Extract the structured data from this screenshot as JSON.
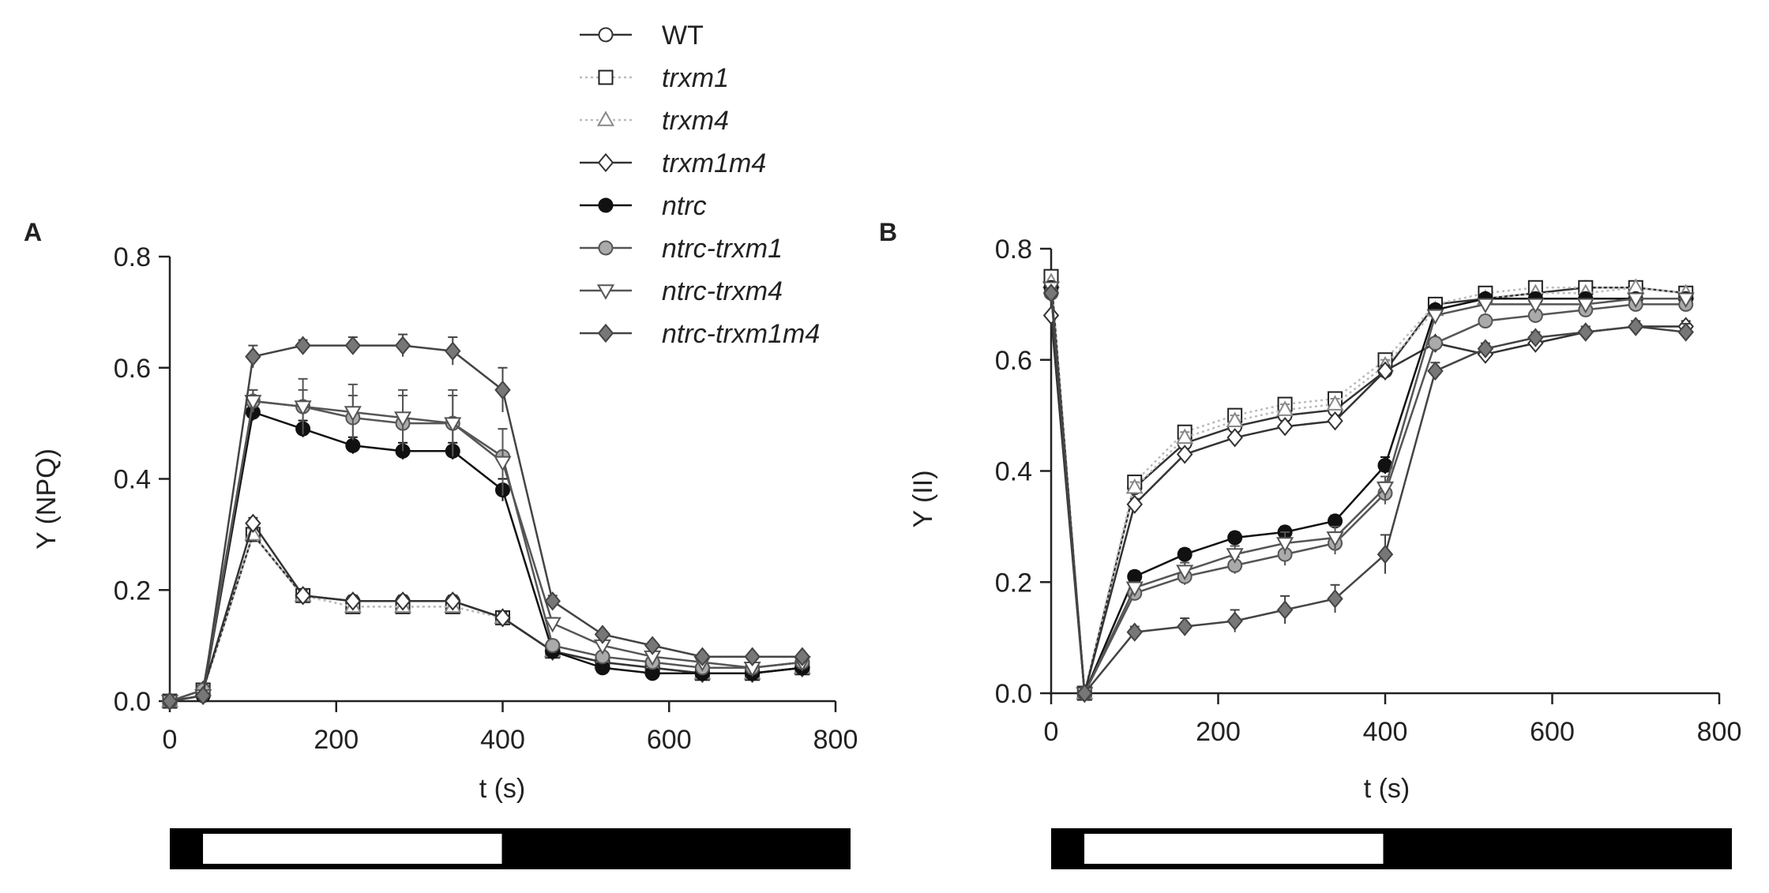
{
  "legend": [
    {
      "label": "WT",
      "italic": false
    },
    {
      "label": "trxm1",
      "italic": true
    },
    {
      "label": "trxm4",
      "italic": true
    },
    {
      "label": "trxm1m4",
      "italic": true
    },
    {
      "label": "ntrc",
      "italic": true
    },
    {
      "label": "ntrc-trxm1",
      "italic": true
    },
    {
      "label": "ntrc-trxm4",
      "italic": true
    },
    {
      "label": "ntrc-trxm1m4",
      "italic": true
    }
  ],
  "series_styles": [
    {
      "name": "WT",
      "marker": "circle",
      "fill": "#ffffff",
      "stroke": "#333333",
      "line": "#333333",
      "dash": ""
    },
    {
      "name": "trxm1",
      "marker": "square",
      "fill": "#ffffff",
      "stroke": "#222222",
      "line": "#bbbbbb",
      "dash": "3,4"
    },
    {
      "name": "trxm4",
      "marker": "triangle",
      "fill": "#ffffff",
      "stroke": "#888888",
      "line": "#bbbbbb",
      "dash": "3,4"
    },
    {
      "name": "trxm1m4",
      "marker": "diamond",
      "fill": "#ffffff",
      "stroke": "#333333",
      "line": "#333333",
      "dash": ""
    },
    {
      "name": "ntrc",
      "marker": "circle",
      "fill": "#111111",
      "stroke": "#111111",
      "line": "#111111",
      "dash": ""
    },
    {
      "name": "ntrc-trxm1",
      "marker": "circle",
      "fill": "#aaaaaa",
      "stroke": "#555555",
      "line": "#555555",
      "dash": ""
    },
    {
      "name": "ntrc-trxm4",
      "marker": "triangle-down",
      "fill": "#ffffff",
      "stroke": "#555555",
      "line": "#555555",
      "dash": ""
    },
    {
      "name": "ntrc-trxm1m4",
      "marker": "diamond",
      "fill": "#777777",
      "stroke": "#444444",
      "line": "#444444",
      "dash": ""
    }
  ],
  "light_bars": [
    {
      "segments": [
        {
          "from": 0,
          "to": 40,
          "color": "#000000"
        },
        {
          "from": 40,
          "to": 400,
          "color": "#ffffff"
        },
        {
          "from": 400,
          "to": 820,
          "color": "#000000"
        }
      ]
    },
    {
      "segments": [
        {
          "from": 0,
          "to": 40,
          "color": "#000000"
        },
        {
          "from": 40,
          "to": 400,
          "color": "#ffffff"
        },
        {
          "from": 400,
          "to": 820,
          "color": "#000000"
        }
      ]
    }
  ],
  "chart_data": [
    {
      "panel": "A",
      "type": "line",
      "xlabel": "t (s)",
      "ylabel": "Y (NPQ)",
      "xlim": [
        0,
        800
      ],
      "ylim": [
        0,
        0.8
      ],
      "xticks": [
        0,
        200,
        400,
        600,
        800
      ],
      "yticks": [
        0.0,
        0.2,
        0.4,
        0.6,
        0.8
      ],
      "xtick_labels": [
        "0",
        "200",
        "400",
        "600",
        "800"
      ],
      "ytick_labels": [
        "0.0",
        "0.2",
        "0.4",
        "0.6",
        "0.8"
      ],
      "x": [
        0,
        40,
        100,
        160,
        220,
        280,
        340,
        400,
        460,
        520,
        580,
        640,
        700,
        760
      ],
      "series": [
        {
          "name": "WT",
          "values": [
            0.0,
            0.02,
            0.3,
            0.19,
            0.18,
            0.18,
            0.18,
            0.15,
            0.09,
            0.07,
            0.06,
            0.05,
            0.05,
            0.06
          ],
          "errors": [
            0.005,
            0.005,
            0.01,
            0.01,
            0.01,
            0.01,
            0.01,
            0.01,
            0.01,
            0.005,
            0.005,
            0.005,
            0.005,
            0.005
          ]
        },
        {
          "name": "trxm1",
          "values": [
            0.0,
            0.02,
            0.3,
            0.19,
            0.17,
            0.17,
            0.17,
            0.15,
            0.09,
            0.07,
            0.06,
            0.05,
            0.05,
            0.06
          ],
          "errors": [
            0.005,
            0.005,
            0.01,
            0.01,
            0.01,
            0.01,
            0.01,
            0.01,
            0.01,
            0.005,
            0.005,
            0.005,
            0.005,
            0.005
          ]
        },
        {
          "name": "trxm4",
          "values": [
            0.0,
            0.02,
            0.3,
            0.19,
            0.17,
            0.17,
            0.17,
            0.15,
            0.09,
            0.07,
            0.06,
            0.05,
            0.05,
            0.06
          ],
          "errors": [
            0.005,
            0.005,
            0.01,
            0.01,
            0.01,
            0.01,
            0.01,
            0.01,
            0.01,
            0.005,
            0.005,
            0.005,
            0.005,
            0.005
          ]
        },
        {
          "name": "trxm1m4",
          "values": [
            0.0,
            0.02,
            0.32,
            0.19,
            0.18,
            0.18,
            0.18,
            0.15,
            0.09,
            0.07,
            0.06,
            0.05,
            0.05,
            0.06
          ],
          "errors": [
            0.005,
            0.005,
            0.01,
            0.01,
            0.01,
            0.01,
            0.01,
            0.01,
            0.01,
            0.005,
            0.005,
            0.005,
            0.005,
            0.005
          ]
        },
        {
          "name": "ntrc",
          "values": [
            0.0,
            0.01,
            0.52,
            0.49,
            0.46,
            0.45,
            0.45,
            0.38,
            0.09,
            0.06,
            0.05,
            0.05,
            0.05,
            0.06
          ],
          "errors": [
            0.005,
            0.005,
            0.015,
            0.015,
            0.015,
            0.015,
            0.015,
            0.02,
            0.01,
            0.005,
            0.005,
            0.005,
            0.005,
            0.005
          ]
        },
        {
          "name": "ntrc-trxm1",
          "values": [
            0.0,
            0.02,
            0.54,
            0.53,
            0.51,
            0.5,
            0.5,
            0.44,
            0.1,
            0.08,
            0.07,
            0.06,
            0.06,
            0.07
          ],
          "errors": [
            0.005,
            0.005,
            0.02,
            0.03,
            0.04,
            0.05,
            0.05,
            0.05,
            0.01,
            0.005,
            0.005,
            0.005,
            0.005,
            0.005
          ]
        },
        {
          "name": "ntrc-trxm4",
          "values": [
            0.0,
            0.01,
            0.54,
            0.53,
            0.52,
            0.51,
            0.5,
            0.43,
            0.14,
            0.1,
            0.08,
            0.07,
            0.06,
            0.07
          ],
          "errors": [
            0.005,
            0.005,
            0.02,
            0.05,
            0.05,
            0.05,
            0.06,
            0.06,
            0.01,
            0.005,
            0.005,
            0.005,
            0.005,
            0.005
          ]
        },
        {
          "name": "ntrc-trxm1m4",
          "values": [
            0.0,
            0.01,
            0.62,
            0.64,
            0.64,
            0.64,
            0.63,
            0.56,
            0.18,
            0.12,
            0.1,
            0.08,
            0.08,
            0.08
          ],
          "errors": [
            0.005,
            0.005,
            0.02,
            0.01,
            0.015,
            0.02,
            0.025,
            0.04,
            0.01,
            0.005,
            0.005,
            0.005,
            0.005,
            0.005
          ]
        }
      ]
    },
    {
      "panel": "B",
      "type": "line",
      "xlabel": "t (s)",
      "ylabel": "Y (II)",
      "xlim": [
        0,
        800
      ],
      "ylim": [
        0,
        0.8
      ],
      "xticks": [
        0,
        200,
        400,
        600,
        800
      ],
      "yticks": [
        0.0,
        0.2,
        0.4,
        0.6,
        0.8
      ],
      "xtick_labels": [
        "0",
        "200",
        "400",
        "600",
        "800"
      ],
      "ytick_labels": [
        "0.0",
        "0.2",
        "0.4",
        "0.6",
        "0.8"
      ],
      "x": [
        0,
        40,
        100,
        160,
        220,
        280,
        340,
        400,
        460,
        520,
        580,
        640,
        700,
        760
      ],
      "series": [
        {
          "name": "WT",
          "values": [
            0.75,
            0.0,
            0.37,
            0.45,
            0.48,
            0.5,
            0.51,
            0.58,
            0.7,
            0.71,
            0.72,
            0.73,
            0.73,
            0.72
          ],
          "errors": [
            0.005,
            0.005,
            0.01,
            0.01,
            0.01,
            0.01,
            0.01,
            0.01,
            0.005,
            0.005,
            0.005,
            0.005,
            0.005,
            0.005
          ]
        },
        {
          "name": "trxm1",
          "values": [
            0.75,
            0.0,
            0.38,
            0.47,
            0.5,
            0.52,
            0.53,
            0.6,
            0.7,
            0.72,
            0.73,
            0.73,
            0.73,
            0.72
          ],
          "errors": [
            0.005,
            0.005,
            0.01,
            0.01,
            0.01,
            0.01,
            0.01,
            0.01,
            0.005,
            0.005,
            0.005,
            0.005,
            0.005,
            0.005
          ]
        },
        {
          "name": "trxm4",
          "values": [
            0.74,
            0.0,
            0.37,
            0.46,
            0.49,
            0.51,
            0.52,
            0.59,
            0.69,
            0.71,
            0.72,
            0.72,
            0.73,
            0.72
          ],
          "errors": [
            0.005,
            0.005,
            0.01,
            0.01,
            0.01,
            0.01,
            0.01,
            0.01,
            0.005,
            0.005,
            0.005,
            0.005,
            0.005,
            0.005
          ]
        },
        {
          "name": "trxm1m4",
          "values": [
            0.68,
            0.0,
            0.34,
            0.43,
            0.46,
            0.48,
            0.49,
            0.58,
            0.63,
            0.61,
            0.63,
            0.65,
            0.66,
            0.66
          ],
          "errors": [
            0.005,
            0.005,
            0.01,
            0.01,
            0.01,
            0.01,
            0.01,
            0.01,
            0.01,
            0.01,
            0.01,
            0.01,
            0.01,
            0.01
          ]
        },
        {
          "name": "ntrc",
          "values": [
            0.73,
            0.0,
            0.21,
            0.25,
            0.28,
            0.29,
            0.31,
            0.41,
            0.69,
            0.71,
            0.71,
            0.71,
            0.71,
            0.71
          ],
          "errors": [
            0.005,
            0.005,
            0.01,
            0.01,
            0.01,
            0.01,
            0.01,
            0.015,
            0.005,
            0.005,
            0.005,
            0.005,
            0.005,
            0.005
          ]
        },
        {
          "name": "ntrc-trxm1",
          "values": [
            0.72,
            0.0,
            0.18,
            0.21,
            0.23,
            0.25,
            0.27,
            0.36,
            0.63,
            0.67,
            0.68,
            0.69,
            0.7,
            0.7
          ],
          "errors": [
            0.005,
            0.005,
            0.01,
            0.015,
            0.015,
            0.02,
            0.02,
            0.02,
            0.01,
            0.01,
            0.01,
            0.01,
            0.01,
            0.01
          ]
        },
        {
          "name": "ntrc-trxm4",
          "values": [
            0.73,
            0.0,
            0.19,
            0.22,
            0.25,
            0.27,
            0.28,
            0.37,
            0.68,
            0.7,
            0.7,
            0.7,
            0.71,
            0.71
          ],
          "errors": [
            0.005,
            0.005,
            0.01,
            0.015,
            0.015,
            0.02,
            0.02,
            0.02,
            0.01,
            0.005,
            0.005,
            0.005,
            0.005,
            0.005
          ]
        },
        {
          "name": "ntrc-trxm1m4",
          "values": [
            0.72,
            0.0,
            0.11,
            0.12,
            0.13,
            0.15,
            0.17,
            0.25,
            0.58,
            0.62,
            0.64,
            0.65,
            0.66,
            0.65
          ],
          "errors": [
            0.005,
            0.005,
            0.01,
            0.015,
            0.02,
            0.025,
            0.025,
            0.035,
            0.015,
            0.01,
            0.01,
            0.01,
            0.01,
            0.015
          ]
        }
      ]
    }
  ],
  "panel_letters": [
    "A",
    "B"
  ]
}
